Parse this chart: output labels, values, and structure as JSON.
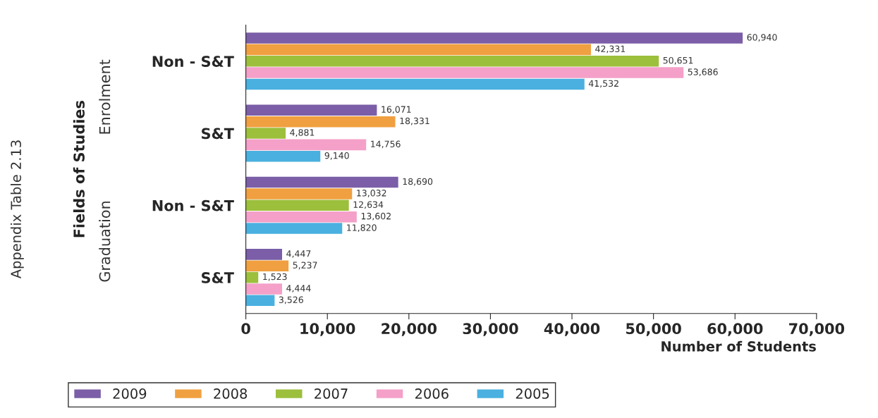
{
  "chart_data": {
    "type": "bar",
    "orientation": "horizontal",
    "categories": [
      "Non - S&T",
      "S&T",
      "Non - S&T",
      "S&T"
    ],
    "series": [
      {
        "name": "2009",
        "color": "#7b5ea7",
        "values": [
          60940,
          16071,
          18690,
          4447
        ],
        "value_labels": [
          "60,940",
          "16,071",
          "18,690",
          "4,447"
        ]
      },
      {
        "name": "2008",
        "color": "#f0a040",
        "values": [
          42331,
          18331,
          13032,
          5237
        ],
        "value_labels": [
          "42,331",
          "18,331",
          "13,032",
          "5,237"
        ]
      },
      {
        "name": "2007",
        "color": "#9cbf3c",
        "values": [
          50651,
          4881,
          12634,
          1523
        ],
        "value_labels": [
          "50,651",
          "4,881",
          "12,634",
          "1,523"
        ]
      },
      {
        "name": "2006",
        "color": "#f4a0c8",
        "values": [
          53686,
          14756,
          13602,
          4444
        ],
        "value_labels": [
          "53,686",
          "14,756",
          "13,602",
          "4,444"
        ]
      },
      {
        "name": "2005",
        "color": "#4ab0e0",
        "values": [
          41532,
          9140,
          11820,
          3526
        ],
        "value_labels": [
          "41,532",
          "9,140",
          "11,820",
          "3,526"
        ]
      }
    ],
    "xlim": [
      0,
      70000
    ],
    "xticks": [
      0,
      {
        "value": 10000,
        "label": "10,000"
      },
      {
        "value": 20000,
        "label": "20,000"
      },
      {
        "value": 30000,
        "label": "30,000"
      },
      {
        "value": 40000,
        "label": "40,000"
      },
      {
        "value": 50000,
        "label": "50,000"
      },
      {
        "value": 60000,
        "label": "60,000"
      },
      {
        "value": 70000,
        "label": "70,000"
      }
    ],
    "xlabel": "Number of Students",
    "annotations": [
      "Enrolment",
      "Graduation",
      "Appendix Table 2.13",
      "Fields of Studies"
    ],
    "legend": "bottom left",
    "grid": false
  }
}
